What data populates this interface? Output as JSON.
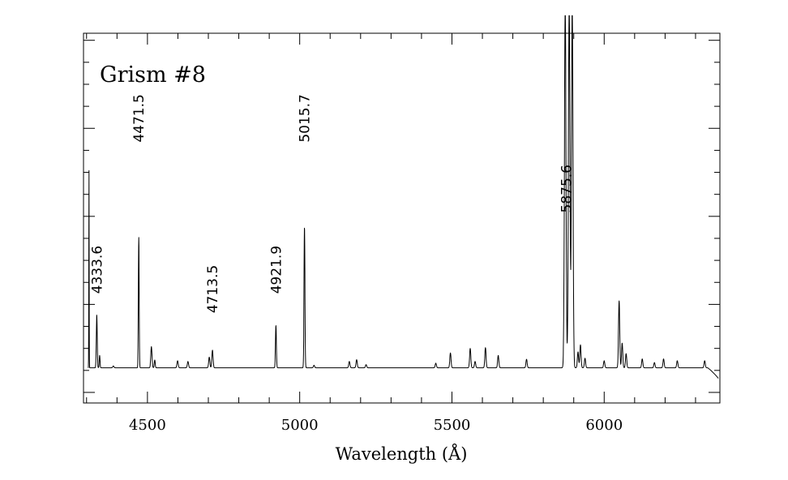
{
  "chart_data": {
    "type": "line",
    "title": "Grism #8",
    "xlabel": "Wavelength (Å)",
    "ylabel": "",
    "xlim": [
      4290,
      6380
    ],
    "ylim": [
      -0.03,
      1.02
    ],
    "x_ticks": [
      4500,
      5000,
      5500,
      6000
    ],
    "x_tick_labels": [
      "4500",
      "5000",
      "5500",
      "6000"
    ],
    "grid": false,
    "continuum_level": 0.07,
    "spectrum_end": {
      "x": [
        6340,
        6350,
        6365,
        6375
      ],
      "y": [
        0.07,
        0.063,
        0.05,
        0.04
      ]
    },
    "peaks": [
      {
        "x": 4308,
        "y": 0.63,
        "w": 0.6
      },
      {
        "x": 4333.6,
        "y": 0.22,
        "w": 1.5
      },
      {
        "x": 4343,
        "y": 0.105,
        "w": 1.3
      },
      {
        "x": 4388,
        "y": 0.075,
        "w": 2.0
      },
      {
        "x": 4471.5,
        "y": 0.44,
        "w": 1.3
      },
      {
        "x": 4513,
        "y": 0.13,
        "w": 2.0
      },
      {
        "x": 4524,
        "y": 0.092,
        "w": 1.5
      },
      {
        "x": 4599,
        "y": 0.09,
        "w": 2.0
      },
      {
        "x": 4633,
        "y": 0.088,
        "w": 2.0
      },
      {
        "x": 4703,
        "y": 0.1,
        "w": 2.0
      },
      {
        "x": 4713.5,
        "y": 0.12,
        "w": 2.0
      },
      {
        "x": 4921.9,
        "y": 0.19,
        "w": 1.5
      },
      {
        "x": 5015.7,
        "y": 0.47,
        "w": 1.5
      },
      {
        "x": 5047,
        "y": 0.077,
        "w": 2.0
      },
      {
        "x": 5163,
        "y": 0.088,
        "w": 2.0
      },
      {
        "x": 5187,
        "y": 0.093,
        "w": 2.0
      },
      {
        "x": 5218,
        "y": 0.079,
        "w": 2.0
      },
      {
        "x": 5447,
        "y": 0.083,
        "w": 2.0
      },
      {
        "x": 5495,
        "y": 0.112,
        "w": 2.0
      },
      {
        "x": 5560,
        "y": 0.125,
        "w": 2.0
      },
      {
        "x": 5576,
        "y": 0.088,
        "w": 2.0
      },
      {
        "x": 5610,
        "y": 0.127,
        "w": 2.0
      },
      {
        "x": 5652,
        "y": 0.105,
        "w": 2.0
      },
      {
        "x": 5745,
        "y": 0.094,
        "w": 2.0
      },
      {
        "x": 5872,
        "y": 1.1,
        "w": 2.5
      },
      {
        "x": 5885,
        "y": 1.1,
        "w": 2.5
      },
      {
        "x": 5895,
        "y": 1.1,
        "w": 2.5
      },
      {
        "x": 5914,
        "y": 0.115,
        "w": 2.0
      },
      {
        "x": 5922,
        "y": 0.135,
        "w": 2.0
      },
      {
        "x": 5937,
        "y": 0.097,
        "w": 2.0
      },
      {
        "x": 6000,
        "y": 0.09,
        "w": 2.0
      },
      {
        "x": 6049,
        "y": 0.26,
        "w": 2.0
      },
      {
        "x": 6059,
        "y": 0.14,
        "w": 2.0
      },
      {
        "x": 6072,
        "y": 0.11,
        "w": 2.0
      },
      {
        "x": 6125,
        "y": 0.095,
        "w": 2.0
      },
      {
        "x": 6165,
        "y": 0.085,
        "w": 2.0
      },
      {
        "x": 6195,
        "y": 0.095,
        "w": 2.0
      },
      {
        "x": 6240,
        "y": 0.09,
        "w": 2.0
      },
      {
        "x": 6330,
        "y": 0.09,
        "w": 2.0
      }
    ],
    "annotations": [
      {
        "text": "4333.6",
        "x": 4333.6,
        "y": 0.28
      },
      {
        "text": "4471.5",
        "x": 4471.5,
        "y": 0.71
      },
      {
        "text": "4713.5",
        "x": 4713.5,
        "y": 0.225
      },
      {
        "text": "4921.9",
        "x": 4921.9,
        "y": 0.28
      },
      {
        "text": "5015.7",
        "x": 5015.7,
        "y": 0.71
      },
      {
        "text": "5875.6",
        "x": 5875.6,
        "y": 0.51
      }
    ]
  }
}
